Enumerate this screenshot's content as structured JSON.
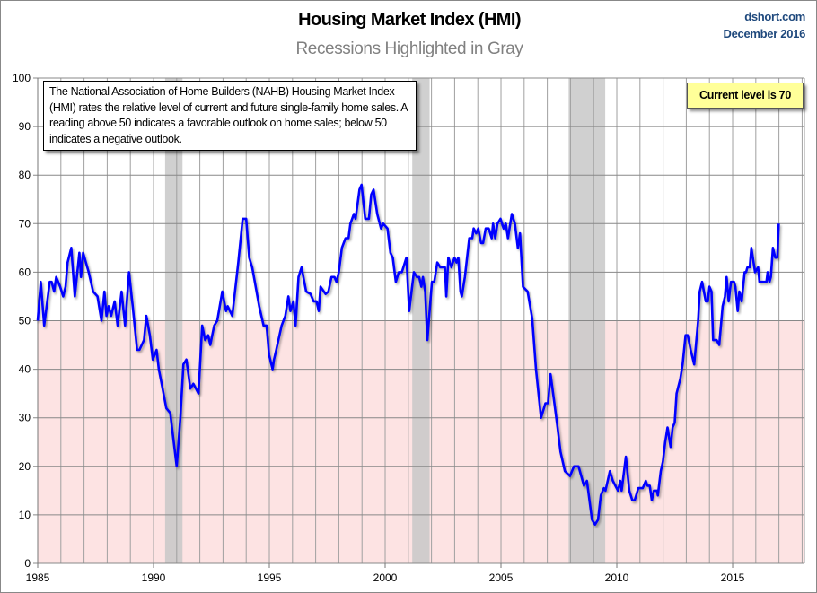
{
  "chart_data": {
    "type": "line",
    "title": "Housing Market Index (HMI)",
    "subtitle": "Recessions Highlighted in Gray",
    "source": "dshort.com",
    "date": "December 2016",
    "annotation": "The National Association of Home Builders (NAHB) Housing Market Index (HMI) rates the relative level of current and future single-family home sales. A reading above 50 indicates a favorable outlook on home sales; below 50 indicates a negative outlook.",
    "current_label": "Current level is 70",
    "xlabel": "",
    "ylabel": "",
    "xlim": [
      1985,
      2018.1
    ],
    "ylim": [
      0,
      100
    ],
    "x_ticks": [
      "1985",
      "1990",
      "1995",
      "2000",
      "2005",
      "2010",
      "2015"
    ],
    "y_ticks": [
      "0",
      "10",
      "20",
      "30",
      "40",
      "50",
      "60",
      "70",
      "80",
      "90",
      "100"
    ],
    "grid": true,
    "negative_zone_below": 50,
    "colors": {
      "line": "#0000ff",
      "negative_zone": "#fde3e3",
      "recession": "#c8c8c8",
      "current_box": "#ffff99",
      "source": "#1f497d"
    },
    "recessions": [
      [
        1990.5,
        1991.25
      ],
      [
        2001.17,
        2001.92
      ],
      [
        2007.92,
        2009.5
      ]
    ],
    "series": [
      {
        "x": [
          1985.0,
          1985.13,
          1985.28,
          1985.52,
          1985.6,
          1985.71,
          1985.8,
          1985.97,
          1986.1,
          1986.2,
          1986.29,
          1986.45,
          1986.6,
          1986.8,
          1986.87,
          1986.96,
          1987.2,
          1987.39,
          1987.58,
          1987.75,
          1987.88,
          1987.97,
          1988.06,
          1988.17,
          1988.32,
          1988.45,
          1988.62,
          1988.77,
          1988.94,
          1989.1,
          1989.29,
          1989.39,
          1989.59,
          1989.69,
          1989.84,
          1989.97,
          1990.13,
          1990.23,
          1990.39,
          1990.55,
          1990.72,
          1991.0,
          1991.16,
          1991.29,
          1991.42,
          1991.59,
          1991.72,
          1991.94,
          1992.1,
          1992.23,
          1992.36,
          1992.45,
          1992.62,
          1992.75,
          1992.97,
          1993.13,
          1993.2,
          1993.4,
          1993.66,
          1993.85,
          1994.0,
          1994.13,
          1994.26,
          1994.56,
          1994.75,
          1994.88,
          1994.99,
          1995.14,
          1995.2,
          1995.3,
          1995.53,
          1995.69,
          1995.82,
          1995.91,
          1996.04,
          1996.13,
          1996.26,
          1996.39,
          1996.59,
          1996.78,
          1996.91,
          1997.04,
          1997.13,
          1997.21,
          1997.43,
          1997.55,
          1997.68,
          1997.81,
          1997.9,
          1998.0,
          1998.13,
          1998.29,
          1998.42,
          1998.5,
          1998.65,
          1998.72,
          1998.78,
          1998.89,
          1998.98,
          1999.14,
          1999.3,
          1999.4,
          1999.5,
          1999.66,
          1999.82,
          1999.92,
          2000.1,
          2000.23,
          2000.33,
          2000.46,
          2000.59,
          2000.72,
          2000.92,
          2001.04,
          2001.24,
          2001.37,
          2001.47,
          2001.56,
          2001.63,
          2001.73,
          2001.82,
          2002.02,
          2002.12,
          2002.25,
          2002.38,
          2002.58,
          2002.64,
          2002.73,
          2002.86,
          2002.99,
          2003.08,
          2003.16,
          2003.25,
          2003.31,
          2003.44,
          2003.63,
          2003.76,
          2003.82,
          2003.93,
          2004.02,
          2004.14,
          2004.23,
          2004.34,
          2004.47,
          2004.6,
          2004.66,
          2004.75,
          2004.85,
          2004.98,
          2005.11,
          2005.21,
          2005.3,
          2005.47,
          2005.6,
          2005.73,
          2005.82,
          2005.95,
          2006.15,
          2006.35,
          2006.51,
          2006.73,
          2006.92,
          2007.03,
          2007.14,
          2007.28,
          2007.44,
          2007.57,
          2007.76,
          2007.98,
          2008.15,
          2008.35,
          2008.58,
          2008.71,
          2008.93,
          2009.06,
          2009.19,
          2009.31,
          2009.44,
          2009.51,
          2009.7,
          2009.83,
          2010.05,
          2010.15,
          2010.21,
          2010.39,
          2010.54,
          2010.67,
          2010.77,
          2010.93,
          2011.12,
          2011.25,
          2011.32,
          2011.42,
          2011.51,
          2011.6,
          2011.73,
          2011.77,
          2011.9,
          2011.99,
          2012.09,
          2012.19,
          2012.32,
          2012.41,
          2012.5,
          2012.58,
          2012.74,
          2012.84,
          2012.97,
          2013.06,
          2013.19,
          2013.34,
          2013.51,
          2013.58,
          2013.68,
          2013.84,
          2013.93,
          2014.0,
          2014.09,
          2014.16,
          2014.31,
          2014.42,
          2014.57,
          2014.67,
          2014.74,
          2014.83,
          2014.93,
          2015.06,
          2015.12,
          2015.22,
          2015.29,
          2015.39,
          2015.52,
          2015.58,
          2015.64,
          2015.74,
          2015.81,
          2015.97,
          2016.1,
          2016.16,
          2016.36,
          2016.46,
          2016.51,
          2016.59,
          2016.65,
          2016.74,
          2016.84,
          2016.93,
          2016.99
        ],
        "values": [
          50,
          58,
          49,
          58,
          58,
          56,
          59,
          57,
          55,
          57,
          62,
          65,
          55,
          64,
          59,
          64,
          60,
          56,
          55,
          50,
          56,
          51,
          53,
          51,
          54,
          49,
          56,
          49,
          60,
          53,
          44,
          44,
          46,
          51,
          47,
          42,
          44,
          40,
          36,
          32,
          31,
          20,
          30,
          41,
          42,
          36,
          37,
          35,
          49,
          46,
          47,
          45,
          49,
          50,
          56,
          52,
          53,
          51,
          62,
          71,
          71,
          63,
          61,
          53,
          49,
          49,
          43,
          40,
          42,
          44,
          49,
          51,
          55,
          52,
          54,
          49,
          59,
          61,
          56,
          55.5,
          54,
          54,
          52,
          57,
          55.5,
          56,
          59,
          59,
          58,
          60,
          65,
          67,
          67,
          70,
          72,
          71,
          73,
          77,
          78,
          71,
          71,
          76,
          77,
          72,
          69,
          70,
          69,
          64,
          63,
          58,
          60,
          60,
          63,
          52,
          60,
          59,
          59,
          57,
          59,
          56,
          46,
          58,
          58,
          62,
          61,
          61,
          55,
          63,
          61,
          63,
          62,
          63,
          56,
          55,
          59,
          67,
          67,
          69,
          68,
          69,
          66,
          66,
          69,
          69,
          67,
          70,
          67,
          70,
          71,
          69,
          70,
          67,
          72,
          70,
          65,
          68,
          57,
          56,
          50.5,
          40,
          30,
          33,
          33,
          39,
          34,
          28,
          23,
          19,
          18,
          20,
          20,
          16,
          17,
          9,
          8,
          9,
          14,
          15.5,
          15,
          19,
          17,
          15,
          17,
          15,
          22,
          15,
          13,
          13,
          15.5,
          15.5,
          17,
          16,
          16,
          13,
          15,
          15,
          14,
          19,
          21,
          25,
          28,
          24,
          28,
          29,
          35,
          38,
          41,
          47,
          47,
          44,
          41,
          50,
          56,
          58,
          54,
          54,
          57,
          56,
          46,
          46,
          45,
          53,
          55,
          59,
          54,
          58,
          58,
          57,
          52,
          56,
          54,
          60,
          60,
          61,
          61,
          65,
          60,
          61,
          58,
          58,
          58,
          60,
          58,
          59,
          65,
          63,
          63,
          70
        ]
      }
    ]
  }
}
